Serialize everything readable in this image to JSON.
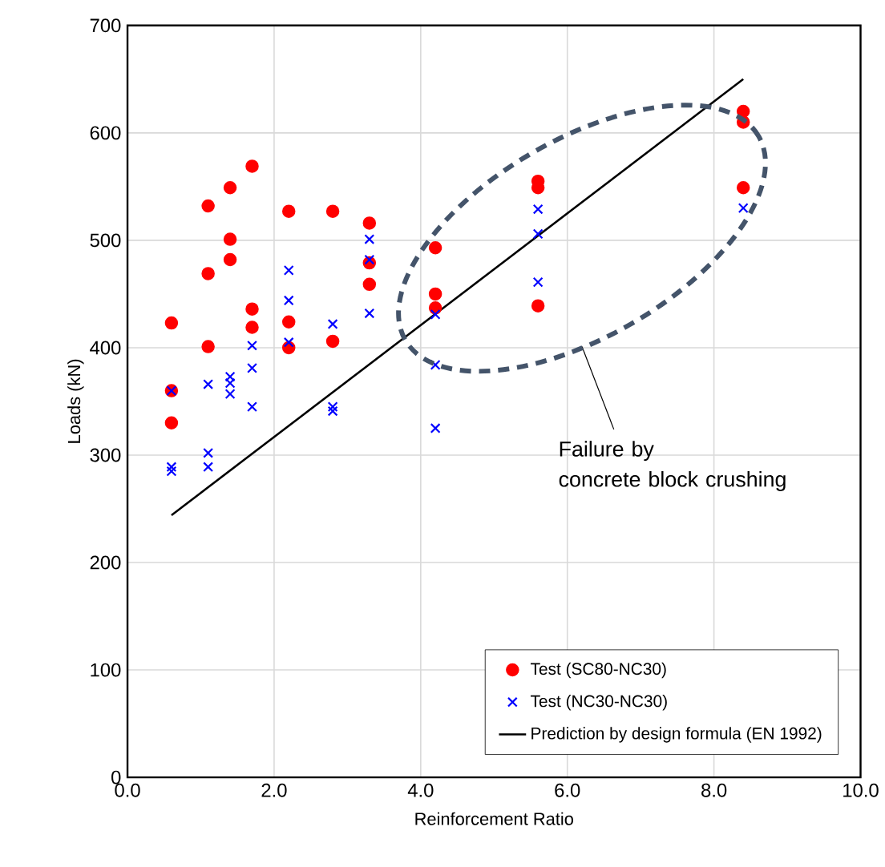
{
  "chart_data": {
    "type": "scatter",
    "xlabel": "Reinforcement Ratio",
    "ylabel": "Loads (kN)",
    "xlim": [
      0,
      10
    ],
    "xticks": [
      {
        "value": 0,
        "label": "0.0"
      },
      {
        "value": 2,
        "label": "2.0"
      },
      {
        "value": 4,
        "label": "4.0"
      },
      {
        "value": 6,
        "label": "6.0"
      },
      {
        "value": 8,
        "label": "8.0"
      },
      {
        "value": 10,
        "label": "10.0"
      }
    ],
    "ylim": [
      0,
      700
    ],
    "yticks": [
      0,
      100,
      200,
      300,
      400,
      500,
      600,
      700
    ],
    "grid": true,
    "legend": "bottom right",
    "series": [
      {
        "name": "Test (SC80-NC30)",
        "marker": "circle",
        "color": "#ff0000",
        "x": [
          0.6,
          0.6,
          0.6,
          1.1,
          1.1,
          1.1,
          1.4,
          1.4,
          1.4,
          1.7,
          1.7,
          1.7,
          2.2,
          2.2,
          2.2,
          2.8,
          2.8,
          3.3,
          3.3,
          3.3,
          4.2,
          4.2,
          4.2,
          5.6,
          5.6,
          5.6,
          8.4,
          8.4,
          8.4
        ],
        "values": [
          423,
          360,
          330,
          532,
          469,
          401,
          549,
          501,
          482,
          569,
          436,
          419,
          527,
          424,
          400,
          527,
          406,
          516,
          479,
          459,
          493,
          450,
          437,
          555,
          549,
          439,
          620,
          610,
          549
        ]
      },
      {
        "name": "Test (NC30-NC30)",
        "marker": "cross",
        "color": "#0000ff",
        "x": [
          0.6,
          0.6,
          0.6,
          1.1,
          1.1,
          1.1,
          1.4,
          1.4,
          1.4,
          1.7,
          1.7,
          1.7,
          2.2,
          2.2,
          2.2,
          2.8,
          2.8,
          2.8,
          3.3,
          3.3,
          3.3,
          4.2,
          4.2,
          4.2,
          5.6,
          5.6,
          5.6,
          8.4
        ],
        "values": [
          360,
          289,
          285,
          366,
          302,
          289,
          373,
          367,
          357,
          402,
          381,
          345,
          472,
          444,
          405,
          422,
          345,
          341,
          501,
          482,
          432,
          431,
          384,
          325,
          529,
          506,
          461,
          530
        ]
      },
      {
        "name": "Prediction by design formula (EN 1992)",
        "type": "line",
        "line_style": "solid",
        "color": "#000000",
        "x": [
          0.6,
          8.4
        ],
        "values": [
          244,
          650
        ]
      }
    ],
    "annotations": [
      "Failure by\nconcrete block crushing"
    ]
  }
}
